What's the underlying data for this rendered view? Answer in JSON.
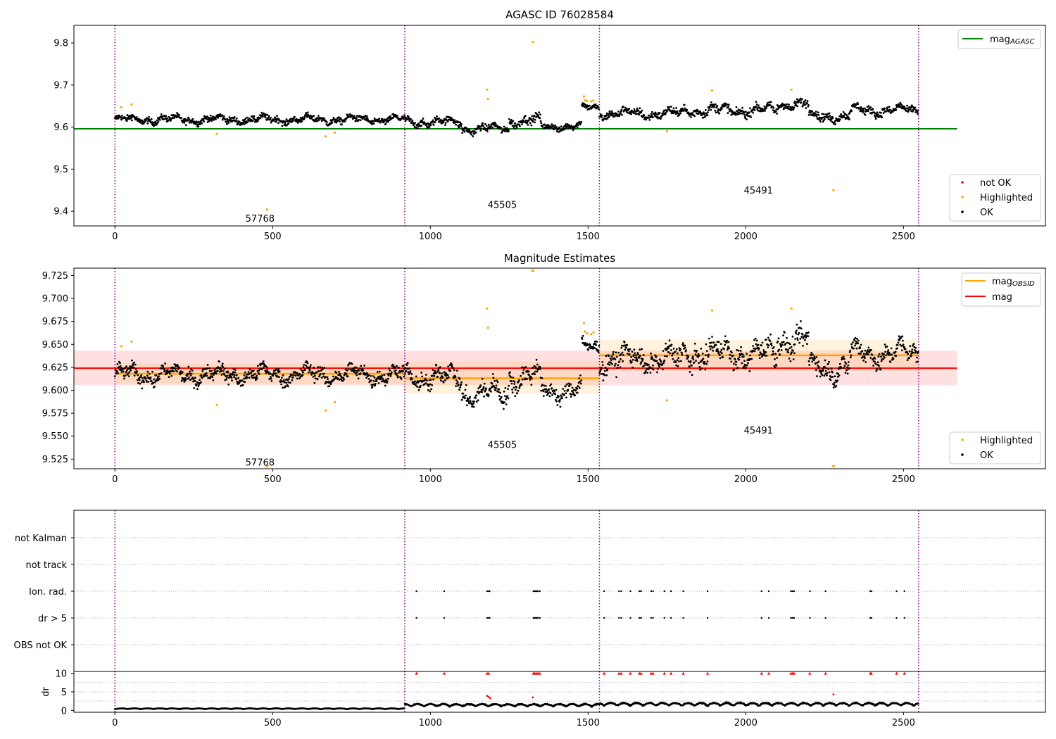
{
  "chart_data": [
    {
      "id": "agasc",
      "type": "scatter",
      "title": "AGASC ID 76028584",
      "xlim": [
        -130,
        2950
      ],
      "ylim": [
        9.365,
        9.842
      ],
      "xticks": [
        0,
        500,
        1000,
        1500,
        2000,
        2500
      ],
      "xtick_labels": [
        "0",
        "500",
        "1000",
        "1500",
        "2000",
        "2500"
      ],
      "yticks": [
        9.4,
        9.5,
        9.6,
        9.7,
        9.8
      ],
      "ytick_labels": [
        "9.4",
        "9.5",
        "9.6",
        "9.7",
        "9.8"
      ],
      "obs_boundaries": [
        0,
        919,
        1536,
        2548
      ],
      "obs_labels": [
        {
          "x": 460,
          "y": 9.375,
          "text": "57768"
        },
        {
          "x": 1228,
          "y": 9.408,
          "text": "45505"
        },
        {
          "x": 2040,
          "y": 9.442,
          "text": "45491"
        }
      ],
      "mag_agasc": {
        "value": 9.596,
        "x": [
          -130,
          2670
        ],
        "color": "#008000"
      },
      "series": [
        {
          "name": "OK",
          "color": "#000000",
          "baseline": 9.6,
          "segments": [
            {
              "x0": 0,
              "x1": 919,
              "level": 9.618,
              "spread": 0.016
            },
            {
              "x0": 919,
              "x1": 1100,
              "level": 9.612,
              "spread": 0.018
            },
            {
              "x0": 1100,
              "x1": 1250,
              "level": 9.596,
              "spread": 0.018
            },
            {
              "x0": 1250,
              "x1": 1350,
              "level": 9.615,
              "spread": 0.02
            },
            {
              "x0": 1350,
              "x1": 1480,
              "level": 9.602,
              "spread": 0.016
            },
            {
              "x0": 1480,
              "x1": 1536,
              "level": 9.647,
              "spread": 0.014
            },
            {
              "x0": 1536,
              "x1": 1800,
              "level": 9.632,
              "spread": 0.02
            },
            {
              "x0": 1800,
              "x1": 2100,
              "level": 9.64,
              "spread": 0.022
            },
            {
              "x0": 2100,
              "x1": 2200,
              "level": 9.655,
              "spread": 0.022
            },
            {
              "x0": 2200,
              "x1": 2330,
              "level": 9.626,
              "spread": 0.02
            },
            {
              "x0": 2330,
              "x1": 2548,
              "level": 9.64,
              "spread": 0.02
            }
          ]
        },
        {
          "name": "Highlighted",
          "color": "#ffa500",
          "points": [
            {
              "x": 20,
              "y": 9.647
            },
            {
              "x": 53,
              "y": 9.654
            },
            {
              "x": 323,
              "y": 9.584
            },
            {
              "x": 482,
              "y": 9.404
            },
            {
              "x": 668,
              "y": 9.578
            },
            {
              "x": 697,
              "y": 9.587
            },
            {
              "x": 1180,
              "y": 9.689
            },
            {
              "x": 1183,
              "y": 9.667
            },
            {
              "x": 1325,
              "y": 9.802
            },
            {
              "x": 1487,
              "y": 9.673
            },
            {
              "x": 1490,
              "y": 9.664
            },
            {
              "x": 1497,
              "y": 9.662
            },
            {
              "x": 1510,
              "y": 9.661
            },
            {
              "x": 1517,
              "y": 9.663
            },
            {
              "x": 1750,
              "y": 9.59
            },
            {
              "x": 1893,
              "y": 9.687
            },
            {
              "x": 2145,
              "y": 9.689
            },
            {
              "x": 2278,
              "y": 9.45
            }
          ]
        },
        {
          "name": "not OK",
          "color": "#ff0000",
          "points": []
        }
      ],
      "legend_top": {
        "position": "top-right",
        "entries": [
          {
            "label": "mag",
            "sub": "AGASC",
            "color": "#008000"
          }
        ]
      },
      "legend_bottom": {
        "position": "lower-right",
        "entries": [
          {
            "label": "not OK",
            "color": "#ff0000"
          },
          {
            "label": "Highlighted",
            "color": "#ffa500"
          },
          {
            "label": "OK",
            "color": "#000000"
          }
        ]
      }
    },
    {
      "id": "estimates",
      "type": "scatter",
      "title": "Magnitude Estimates",
      "xlim": [
        -130,
        2950
      ],
      "ylim": [
        9.5145,
        9.733
      ],
      "xticks": [
        0,
        500,
        1000,
        1500,
        2000,
        2500
      ],
      "xtick_labels": [
        "0",
        "500",
        "1000",
        "1500",
        "2000",
        "2500"
      ],
      "yticks": [
        9.525,
        9.55,
        9.575,
        9.6,
        9.625,
        9.65,
        9.675,
        9.7,
        9.725
      ],
      "ytick_labels": [
        "9.525",
        "9.550",
        "9.575",
        "9.600",
        "9.625",
        "9.650",
        "9.675",
        "9.700",
        "9.725"
      ],
      "obs_boundaries": [
        0,
        919,
        1536,
        2548
      ],
      "obs_labels": [
        {
          "x": 460,
          "y": 9.518,
          "text": "57768"
        },
        {
          "x": 1228,
          "y": 9.537,
          "text": "45505"
        },
        {
          "x": 2040,
          "y": 9.553,
          "text": "45491"
        }
      ],
      "mag": {
        "value": 9.624,
        "band": [
          9.6055,
          9.643
        ],
        "x": [
          -130,
          2670
        ],
        "color": "#ff0000"
      },
      "mag_obsid": [
        {
          "x0": 0,
          "x1": 919,
          "value": 9.618,
          "band": [
            9.607,
            9.629
          ]
        },
        {
          "x0": 919,
          "x1": 1536,
          "value": 9.613,
          "band": [
            9.596,
            9.631
          ]
        },
        {
          "x0": 1536,
          "x1": 2548,
          "value": 9.638,
          "band": [
            9.621,
            9.655
          ]
        }
      ],
      "series": [
        {
          "name": "OK",
          "color": "#000000",
          "segments": [
            {
              "x0": 0,
              "x1": 919,
              "level": 9.617,
              "spread": 0.016
            },
            {
              "x0": 919,
              "x1": 1100,
              "level": 9.614,
              "spread": 0.02
            },
            {
              "x0": 1100,
              "x1": 1250,
              "level": 9.596,
              "spread": 0.022
            },
            {
              "x0": 1250,
              "x1": 1350,
              "level": 9.615,
              "spread": 0.022
            },
            {
              "x0": 1350,
              "x1": 1480,
              "level": 9.6,
              "spread": 0.018
            },
            {
              "x0": 1480,
              "x1": 1536,
              "level": 9.646,
              "spread": 0.016
            },
            {
              "x0": 1536,
              "x1": 1800,
              "level": 9.634,
              "spread": 0.022
            },
            {
              "x0": 1800,
              "x1": 2100,
              "level": 9.64,
              "spread": 0.024
            },
            {
              "x0": 2100,
              "x1": 2200,
              "level": 9.655,
              "spread": 0.024
            },
            {
              "x0": 2200,
              "x1": 2330,
              "level": 9.625,
              "spread": 0.022
            },
            {
              "x0": 2330,
              "x1": 2548,
              "level": 9.64,
              "spread": 0.022
            }
          ]
        },
        {
          "name": "Highlighted",
          "color": "#ffa500",
          "points": [
            {
              "x": 20,
              "y": 9.648
            },
            {
              "x": 53,
              "y": 9.653
            },
            {
              "x": 323,
              "y": 9.584
            },
            {
              "x": 668,
              "y": 9.578
            },
            {
              "x": 697,
              "y": 9.587
            },
            {
              "x": 1180,
              "y": 9.689
            },
            {
              "x": 1183,
              "y": 9.668
            },
            {
              "x": 1487,
              "y": 9.673
            },
            {
              "x": 1490,
              "y": 9.664
            },
            {
              "x": 1497,
              "y": 9.662
            },
            {
              "x": 1510,
              "y": 9.661
            },
            {
              "x": 1517,
              "y": 9.663
            },
            {
              "x": 1750,
              "y": 9.589
            },
            {
              "x": 1893,
              "y": 9.687
            },
            {
              "x": 2145,
              "y": 9.689
            }
          ]
        }
      ],
      "out_of_range_markers": [
        {
          "x": 1325,
          "direction": "up",
          "color": "#ffa500"
        },
        {
          "x": 482,
          "direction": "down",
          "color": "#ffa500"
        },
        {
          "x": 2278,
          "direction": "down",
          "color": "#ffa500"
        }
      ],
      "legend_top": {
        "position": "top-right",
        "entries": [
          {
            "label": "mag",
            "sub": "OBSID",
            "color": "#ffa500"
          },
          {
            "label": "mag",
            "sub": "",
            "color": "#ff0000"
          }
        ]
      },
      "legend_bottom": {
        "position": "lower-right",
        "entries": [
          {
            "label": "Highlighted",
            "color": "#ffa500"
          },
          {
            "label": "OK",
            "color": "#000000"
          }
        ]
      }
    },
    {
      "id": "flags",
      "type": "scatter",
      "xlim": [
        -130,
        2950
      ],
      "obs_boundaries": [
        0,
        919,
        1536,
        2548
      ],
      "rows": [
        "not Kalman",
        "not track",
        "Ion. rad.",
        "dr > 5",
        "OBS not OK"
      ],
      "flagged_x": [
        956,
        1044,
        1180,
        1185,
        1327,
        1331,
        1336,
        1341,
        1347,
        1551,
        1598,
        1605,
        1634,
        1663,
        1668,
        1700,
        1706,
        1742,
        1763,
        1802,
        1879,
        2050,
        2073,
        2143,
        2148,
        2153,
        2203,
        2253,
        2395,
        2398,
        2478,
        2503
      ],
      "ion_rad_extra_x": [
        1188,
        1334,
        1339
      ],
      "color": "#000000"
    },
    {
      "id": "dr",
      "type": "scatter",
      "ylabel": "dr",
      "xlim": [
        -130,
        2950
      ],
      "ylim": [
        -0.5,
        10.5
      ],
      "yticks": [
        0,
        5,
        10
      ],
      "ytick_labels": [
        "0",
        "5",
        "10"
      ],
      "xticks": [
        0,
        500,
        1000,
        1500,
        2000,
        2500
      ],
      "xtick_labels": [
        "0",
        "500",
        "1000",
        "1500",
        "2000",
        "2500"
      ],
      "obs_boundaries": [
        0,
        919,
        1536,
        2548
      ],
      "ok_segments": [
        {
          "x0": 0,
          "x1": 919,
          "level": 0.35,
          "spread": 0.2
        },
        {
          "x0": 919,
          "x1": 1536,
          "level": 1.1,
          "spread": 0.6
        },
        {
          "x0": 1536,
          "x1": 2548,
          "level": 1.3,
          "spread": 0.7
        }
      ],
      "clipped_x": [
        956,
        1044,
        1180,
        1185,
        1327,
        1331,
        1336,
        1341,
        1347,
        1551,
        1598,
        1605,
        1634,
        1663,
        1668,
        1700,
        1706,
        1742,
        1763,
        1802,
        1879,
        2050,
        2073,
        2143,
        2148,
        2153,
        2203,
        2253,
        2395,
        2398,
        2478,
        2503
      ],
      "red_points": [
        {
          "x": 1180,
          "y": 3.9
        },
        {
          "x": 1185,
          "y": 3.6
        },
        {
          "x": 1190,
          "y": 3.3
        },
        {
          "x": 1325,
          "y": 3.5
        },
        {
          "x": 2278,
          "y": 4.3
        }
      ],
      "clip_value": 10,
      "color_ok": "#000000",
      "color_bad": "#ff0000"
    }
  ]
}
